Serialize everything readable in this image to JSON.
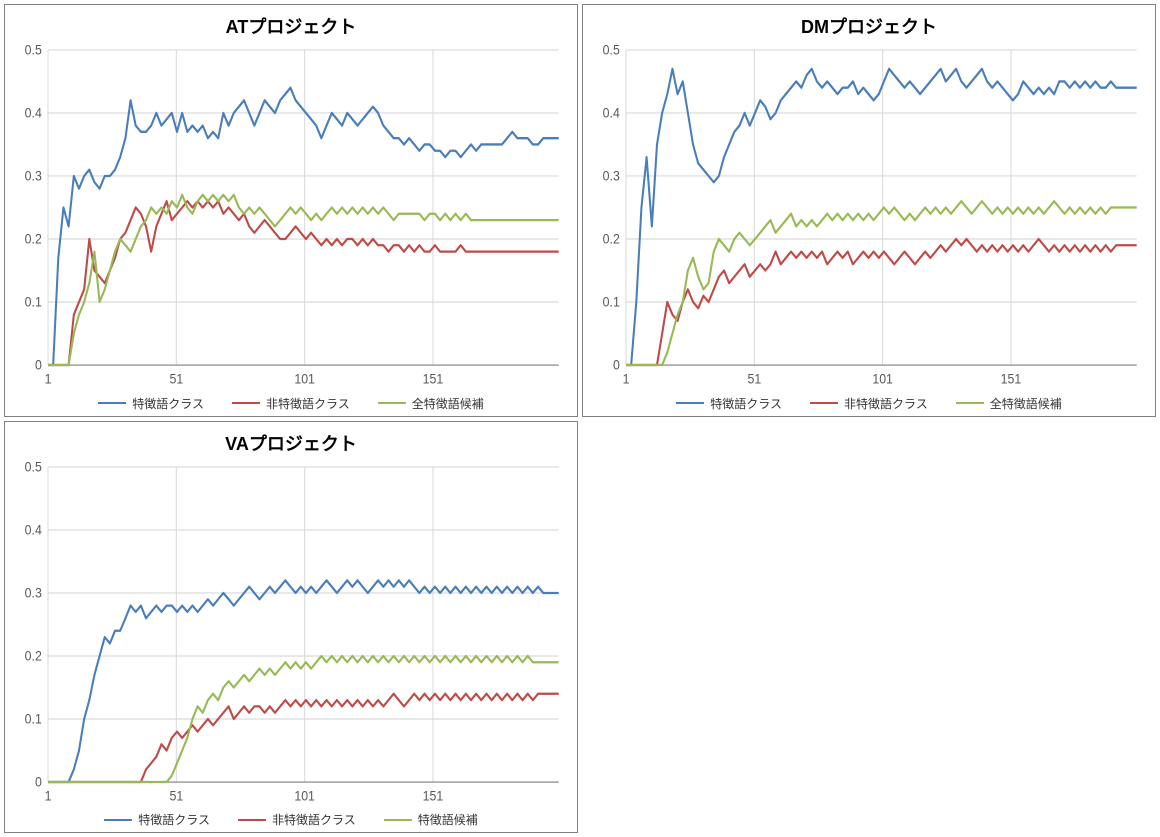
{
  "layout": {
    "grid": "2x2",
    "panel_border_color": "#808080",
    "background_color": "#ffffff"
  },
  "typography": {
    "title_fontsize": 18,
    "title_weight": "bold",
    "axis_fontsize": 12,
    "legend_fontsize": 12,
    "font_family": "Meiryo / MS PGothic"
  },
  "common_chart": {
    "type": "line",
    "xlim": [
      1,
      200
    ],
    "xticks": [
      1,
      51,
      101,
      151
    ],
    "ylim": [
      0,
      0.5
    ],
    "yticks": [
      0,
      0.1,
      0.2,
      0.3,
      0.4,
      0.5
    ],
    "grid_color": "#d9d9d9",
    "axis_color": "#808080",
    "tick_color": "#595959",
    "line_width": 2
  },
  "series_colors": {
    "s1": "#4a7ebb",
    "s2": "#be4b48",
    "s3": "#98b954"
  },
  "charts": [
    {
      "id": "at",
      "title": "ATプロジェクト",
      "legend": [
        "特徴語クラス",
        "非特徴語クラス",
        "全特徴語候補"
      ],
      "series": {
        "s1": [
          0,
          0,
          0.17,
          0.25,
          0.22,
          0.3,
          0.28,
          0.3,
          0.31,
          0.29,
          0.28,
          0.3,
          0.3,
          0.31,
          0.33,
          0.36,
          0.42,
          0.38,
          0.37,
          0.37,
          0.38,
          0.4,
          0.38,
          0.39,
          0.4,
          0.37,
          0.4,
          0.37,
          0.38,
          0.37,
          0.38,
          0.36,
          0.37,
          0.36,
          0.4,
          0.38,
          0.4,
          0.41,
          0.42,
          0.4,
          0.38,
          0.4,
          0.42,
          0.41,
          0.4,
          0.42,
          0.43,
          0.44,
          0.42,
          0.41,
          0.4,
          0.39,
          0.38,
          0.36,
          0.38,
          0.4,
          0.39,
          0.38,
          0.4,
          0.39,
          0.38,
          0.39,
          0.4,
          0.41,
          0.4,
          0.38,
          0.37,
          0.36,
          0.36,
          0.35,
          0.36,
          0.35,
          0.34,
          0.35,
          0.35,
          0.34,
          0.34,
          0.33,
          0.34,
          0.34,
          0.33,
          0.34,
          0.35,
          0.34,
          0.35,
          0.35,
          0.35,
          0.35,
          0.35,
          0.36,
          0.37,
          0.36,
          0.36,
          0.36,
          0.35,
          0.35,
          0.36,
          0.36,
          0.36,
          0.36
        ],
        "s2": [
          0,
          0,
          0,
          0,
          0,
          0.08,
          0.1,
          0.12,
          0.2,
          0.15,
          0.14,
          0.13,
          0.15,
          0.17,
          0.2,
          0.21,
          0.23,
          0.25,
          0.24,
          0.22,
          0.18,
          0.22,
          0.24,
          0.26,
          0.23,
          0.24,
          0.25,
          0.26,
          0.25,
          0.26,
          0.25,
          0.26,
          0.25,
          0.26,
          0.24,
          0.25,
          0.24,
          0.23,
          0.24,
          0.22,
          0.21,
          0.22,
          0.23,
          0.22,
          0.21,
          0.2,
          0.2,
          0.21,
          0.22,
          0.21,
          0.2,
          0.21,
          0.2,
          0.19,
          0.2,
          0.19,
          0.2,
          0.19,
          0.2,
          0.2,
          0.19,
          0.2,
          0.19,
          0.2,
          0.19,
          0.19,
          0.18,
          0.19,
          0.19,
          0.18,
          0.19,
          0.18,
          0.19,
          0.18,
          0.18,
          0.19,
          0.18,
          0.18,
          0.18,
          0.18,
          0.19,
          0.18,
          0.18,
          0.18,
          0.18,
          0.18,
          0.18,
          0.18,
          0.18,
          0.18,
          0.18,
          0.18,
          0.18,
          0.18,
          0.18,
          0.18,
          0.18,
          0.18,
          0.18,
          0.18
        ],
        "s3": [
          0,
          0,
          0,
          0,
          0,
          0.05,
          0.08,
          0.1,
          0.13,
          0.18,
          0.1,
          0.12,
          0.15,
          0.18,
          0.2,
          0.19,
          0.18,
          0.2,
          0.22,
          0.23,
          0.25,
          0.24,
          0.25,
          0.24,
          0.26,
          0.25,
          0.27,
          0.25,
          0.24,
          0.26,
          0.27,
          0.26,
          0.27,
          0.26,
          0.27,
          0.26,
          0.27,
          0.25,
          0.24,
          0.25,
          0.24,
          0.25,
          0.24,
          0.23,
          0.22,
          0.23,
          0.24,
          0.25,
          0.24,
          0.25,
          0.24,
          0.23,
          0.24,
          0.23,
          0.24,
          0.25,
          0.24,
          0.25,
          0.24,
          0.25,
          0.24,
          0.25,
          0.24,
          0.25,
          0.24,
          0.25,
          0.24,
          0.23,
          0.24,
          0.24,
          0.24,
          0.24,
          0.24,
          0.23,
          0.24,
          0.24,
          0.23,
          0.24,
          0.23,
          0.24,
          0.23,
          0.24,
          0.23,
          0.23,
          0.23,
          0.23,
          0.23,
          0.23,
          0.23,
          0.23,
          0.23,
          0.23,
          0.23,
          0.23,
          0.23,
          0.23,
          0.23,
          0.23,
          0.23,
          0.23
        ]
      }
    },
    {
      "id": "dm",
      "title": "DMプロジェクト",
      "legend": [
        "特徴語クラス",
        "非特徴語クラス",
        "全特徴語候補"
      ],
      "series": {
        "s1": [
          0,
          0,
          0.1,
          0.25,
          0.33,
          0.22,
          0.35,
          0.4,
          0.43,
          0.47,
          0.43,
          0.45,
          0.4,
          0.35,
          0.32,
          0.31,
          0.3,
          0.29,
          0.3,
          0.33,
          0.35,
          0.37,
          0.38,
          0.4,
          0.38,
          0.4,
          0.42,
          0.41,
          0.39,
          0.4,
          0.42,
          0.43,
          0.44,
          0.45,
          0.44,
          0.46,
          0.47,
          0.45,
          0.44,
          0.45,
          0.44,
          0.43,
          0.44,
          0.44,
          0.45,
          0.43,
          0.44,
          0.43,
          0.42,
          0.43,
          0.45,
          0.47,
          0.46,
          0.45,
          0.44,
          0.45,
          0.44,
          0.43,
          0.44,
          0.45,
          0.46,
          0.47,
          0.45,
          0.46,
          0.47,
          0.45,
          0.44,
          0.45,
          0.46,
          0.47,
          0.45,
          0.44,
          0.45,
          0.44,
          0.43,
          0.42,
          0.43,
          0.45,
          0.44,
          0.43,
          0.44,
          0.43,
          0.44,
          0.43,
          0.45,
          0.45,
          0.44,
          0.45,
          0.44,
          0.45,
          0.44,
          0.45,
          0.44,
          0.44,
          0.45,
          0.44,
          0.44,
          0.44,
          0.44,
          0.44
        ],
        "s2": [
          0,
          0,
          0,
          0,
          0,
          0,
          0,
          0.05,
          0.1,
          0.08,
          0.07,
          0.1,
          0.12,
          0.1,
          0.09,
          0.11,
          0.1,
          0.12,
          0.14,
          0.15,
          0.13,
          0.14,
          0.15,
          0.16,
          0.14,
          0.15,
          0.16,
          0.15,
          0.16,
          0.18,
          0.16,
          0.17,
          0.18,
          0.17,
          0.18,
          0.17,
          0.18,
          0.17,
          0.18,
          0.16,
          0.17,
          0.18,
          0.17,
          0.18,
          0.16,
          0.17,
          0.18,
          0.17,
          0.18,
          0.17,
          0.18,
          0.17,
          0.16,
          0.17,
          0.18,
          0.17,
          0.16,
          0.17,
          0.18,
          0.17,
          0.18,
          0.19,
          0.18,
          0.19,
          0.2,
          0.19,
          0.2,
          0.19,
          0.18,
          0.19,
          0.18,
          0.19,
          0.18,
          0.19,
          0.18,
          0.19,
          0.18,
          0.19,
          0.18,
          0.19,
          0.2,
          0.19,
          0.18,
          0.19,
          0.18,
          0.19,
          0.18,
          0.19,
          0.18,
          0.19,
          0.18,
          0.19,
          0.18,
          0.19,
          0.18,
          0.19,
          0.19,
          0.19,
          0.19,
          0.19
        ],
        "s3": [
          0,
          0,
          0,
          0,
          0,
          0,
          0,
          0,
          0.02,
          0.05,
          0.08,
          0.1,
          0.15,
          0.17,
          0.14,
          0.12,
          0.13,
          0.18,
          0.2,
          0.19,
          0.18,
          0.2,
          0.21,
          0.2,
          0.19,
          0.2,
          0.21,
          0.22,
          0.23,
          0.21,
          0.22,
          0.23,
          0.24,
          0.22,
          0.23,
          0.22,
          0.23,
          0.22,
          0.23,
          0.24,
          0.23,
          0.24,
          0.23,
          0.24,
          0.23,
          0.24,
          0.23,
          0.24,
          0.23,
          0.24,
          0.25,
          0.24,
          0.25,
          0.24,
          0.23,
          0.24,
          0.23,
          0.24,
          0.25,
          0.24,
          0.25,
          0.24,
          0.25,
          0.24,
          0.25,
          0.26,
          0.25,
          0.24,
          0.25,
          0.26,
          0.25,
          0.24,
          0.25,
          0.24,
          0.25,
          0.24,
          0.25,
          0.24,
          0.25,
          0.24,
          0.25,
          0.24,
          0.25,
          0.26,
          0.25,
          0.24,
          0.25,
          0.24,
          0.25,
          0.24,
          0.25,
          0.24,
          0.25,
          0.24,
          0.25,
          0.25,
          0.25,
          0.25,
          0.25,
          0.25
        ]
      }
    },
    {
      "id": "va",
      "title": "VAプロジェクト",
      "legend": [
        "特徴語クラス",
        "非特徴語クラス",
        "特徴語候補"
      ],
      "series": {
        "s1": [
          0,
          0,
          0,
          0,
          0,
          0.02,
          0.05,
          0.1,
          0.13,
          0.17,
          0.2,
          0.23,
          0.22,
          0.24,
          0.24,
          0.26,
          0.28,
          0.27,
          0.28,
          0.26,
          0.27,
          0.28,
          0.27,
          0.28,
          0.28,
          0.27,
          0.28,
          0.27,
          0.28,
          0.27,
          0.28,
          0.29,
          0.28,
          0.29,
          0.3,
          0.29,
          0.28,
          0.29,
          0.3,
          0.31,
          0.3,
          0.29,
          0.3,
          0.31,
          0.3,
          0.31,
          0.32,
          0.31,
          0.3,
          0.31,
          0.3,
          0.31,
          0.3,
          0.31,
          0.32,
          0.31,
          0.3,
          0.31,
          0.32,
          0.31,
          0.32,
          0.31,
          0.3,
          0.31,
          0.32,
          0.31,
          0.32,
          0.31,
          0.32,
          0.31,
          0.32,
          0.31,
          0.3,
          0.31,
          0.3,
          0.31,
          0.3,
          0.31,
          0.3,
          0.31,
          0.3,
          0.31,
          0.3,
          0.31,
          0.3,
          0.31,
          0.3,
          0.31,
          0.3,
          0.31,
          0.3,
          0.31,
          0.3,
          0.31,
          0.3,
          0.31,
          0.3,
          0.3,
          0.3,
          0.3
        ],
        "s2": [
          0,
          0,
          0,
          0,
          0,
          0,
          0,
          0,
          0,
          0,
          0,
          0,
          0,
          0,
          0,
          0,
          0,
          0,
          0,
          0.02,
          0.03,
          0.04,
          0.06,
          0.05,
          0.07,
          0.08,
          0.07,
          0.08,
          0.09,
          0.08,
          0.09,
          0.1,
          0.09,
          0.1,
          0.11,
          0.12,
          0.1,
          0.11,
          0.12,
          0.11,
          0.12,
          0.12,
          0.11,
          0.12,
          0.11,
          0.12,
          0.13,
          0.12,
          0.13,
          0.12,
          0.13,
          0.12,
          0.13,
          0.12,
          0.13,
          0.12,
          0.13,
          0.12,
          0.13,
          0.12,
          0.13,
          0.12,
          0.13,
          0.12,
          0.13,
          0.12,
          0.13,
          0.14,
          0.13,
          0.12,
          0.13,
          0.14,
          0.13,
          0.14,
          0.13,
          0.14,
          0.13,
          0.14,
          0.13,
          0.14,
          0.13,
          0.14,
          0.13,
          0.14,
          0.13,
          0.14,
          0.13,
          0.14,
          0.13,
          0.14,
          0.13,
          0.14,
          0.13,
          0.14,
          0.13,
          0.14,
          0.14,
          0.14,
          0.14,
          0.14
        ],
        "s3": [
          0,
          0,
          0,
          0,
          0,
          0,
          0,
          0,
          0,
          0,
          0,
          0,
          0,
          0,
          0,
          0,
          0,
          0,
          0,
          0,
          0,
          0,
          0,
          0,
          0.01,
          0.03,
          0.05,
          0.07,
          0.1,
          0.12,
          0.11,
          0.13,
          0.14,
          0.13,
          0.15,
          0.16,
          0.15,
          0.16,
          0.17,
          0.16,
          0.17,
          0.18,
          0.17,
          0.18,
          0.17,
          0.18,
          0.19,
          0.18,
          0.19,
          0.18,
          0.19,
          0.18,
          0.19,
          0.2,
          0.19,
          0.2,
          0.19,
          0.2,
          0.19,
          0.2,
          0.19,
          0.2,
          0.19,
          0.2,
          0.19,
          0.2,
          0.19,
          0.2,
          0.19,
          0.2,
          0.19,
          0.2,
          0.19,
          0.2,
          0.19,
          0.2,
          0.19,
          0.2,
          0.19,
          0.2,
          0.19,
          0.2,
          0.19,
          0.2,
          0.19,
          0.2,
          0.19,
          0.2,
          0.19,
          0.2,
          0.19,
          0.2,
          0.19,
          0.2,
          0.19,
          0.19,
          0.19,
          0.19,
          0.19,
          0.19
        ]
      }
    }
  ]
}
